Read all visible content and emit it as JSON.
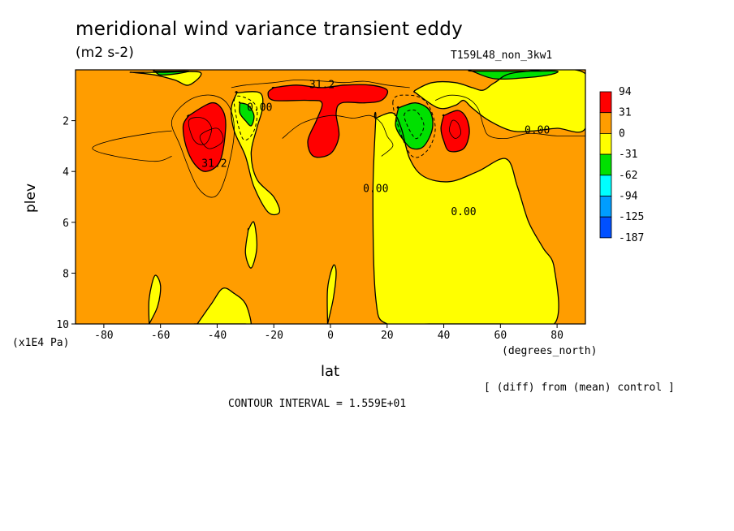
{
  "title": "meridional wind variance transient eddy",
  "units": "(m2 s-2)",
  "run_label": "T159L48_non_3kw1",
  "footer": {
    "diff_note": "[ (diff) from (mean) control ]",
    "contour_interval": "CONTOUR INTERVAL = 1.559E+01"
  },
  "chart_data": {
    "type": "heatmap",
    "title": "meridional wind variance transient eddy",
    "xlabel": "lat",
    "x_unit": "(degrees_north)",
    "ylabel": "plev",
    "y_unit": "(x1E4 Pa)",
    "xlim": [
      -90,
      90
    ],
    "ylim": [
      10,
      0
    ],
    "x_ticks": [
      -80,
      -60,
      -40,
      -20,
      0,
      20,
      40,
      60,
      80
    ],
    "y_ticks": [
      2,
      4,
      6,
      8,
      10
    ],
    "contour_interval": 15.59,
    "colorbar": {
      "labels": [
        "94",
        "31",
        "0",
        "-31",
        "-62",
        "-94",
        "-125",
        "-187"
      ],
      "colors": [
        "#ff0000",
        "#ff9d00",
        "#ffff00",
        "#00e000",
        "#00ffff",
        "#009dff",
        "#0050ff"
      ]
    },
    "contour_labels": [
      {
        "text": "31.2",
        "lat": -3,
        "plev": 0.6
      },
      {
        "text": "0.00",
        "lat": -25,
        "plev": 1.5
      },
      {
        "text": "31.2",
        "lat": -41,
        "plev": 3.7
      },
      {
        "text": "0.00",
        "lat": 73,
        "plev": 2.4
      },
      {
        "text": "0.00",
        "lat": 16,
        "plev": 4.7
      },
      {
        "text": "0.00",
        "lat": 47,
        "plev": 5.6
      }
    ],
    "regions": [
      {
        "level": "0 to 31",
        "color": "#ffff00",
        "lon": [
          -33,
          -25,
          -24,
          -26,
          -28,
          -26,
          -20,
          -18,
          -22,
          -27,
          -30,
          -34,
          -35,
          -33
        ],
        "lev": [
          0.9,
          0.9,
          1.5,
          2.3,
          3.3,
          4.3,
          5.0,
          5.6,
          5.6,
          4.6,
          3.4,
          2.4,
          1.5,
          0.9
        ]
      },
      {
        "level": "0 to 31",
        "color": "#ffff00",
        "lon": [
          16,
          22,
          25,
          28,
          33,
          42,
          52,
          62,
          66,
          70,
          75,
          79,
          79,
          60,
          35,
          20,
          16,
          15,
          16
        ],
        "lev": [
          1.9,
          1.7,
          2.3,
          3.5,
          4.2,
          4.4,
          4.0,
          3.5,
          4.6,
          6.0,
          7.0,
          7.8,
          10,
          10,
          10,
          10,
          9.0,
          5.0,
          1.9
        ]
      },
      {
        "level": "0 to 31",
        "color": "#ffff00",
        "lon": [
          30,
          38,
          44,
          47,
          50,
          56,
          64,
          72,
          80,
          90,
          90,
          66,
          58,
          54,
          50,
          44,
          36,
          30,
          30
        ],
        "lev": [
          0.9,
          1.5,
          1.4,
          1.2,
          1.5,
          2.0,
          2.4,
          2.4,
          2.3,
          2.3,
          0.15,
          0.1,
          0.5,
          0.8,
          0.7,
          0.5,
          0.5,
          0.8,
          0.9
        ]
      },
      {
        "level": "0 to 31",
        "color": "#ffff00",
        "lon": [
          -70,
          -62,
          -55,
          -50,
          -46,
          -60,
          -70,
          -70
        ],
        "lev": [
          0.1,
          0.2,
          0.4,
          0.6,
          0.1,
          0.1,
          0.1,
          0.1
        ]
      },
      {
        "level": "0 to 31",
        "color": "#ffff00",
        "lon": [
          -47,
          -42,
          -38,
          -34,
          -30,
          -28,
          -30,
          -34,
          -44,
          -48,
          -47
        ],
        "lev": [
          10,
          9.2,
          8.6,
          8.8,
          9.2,
          10,
          10,
          10,
          10,
          10,
          10
        ]
      },
      {
        "level": "0 to 31",
        "color": "#ffff00",
        "lon": [
          -64,
          -61,
          -60,
          -62,
          -64,
          -64
        ],
        "lev": [
          10,
          9.3,
          8.5,
          8.1,
          9.0,
          10
        ]
      },
      {
        "level": "0 to 31",
        "color": "#ffff00",
        "lon": [
          -29,
          -27,
          -26,
          -28,
          -30,
          -29
        ],
        "lev": [
          6.3,
          6.0,
          7.0,
          7.8,
          7.2,
          6.3
        ]
      },
      {
        "level": "0 to 31",
        "color": "#ffff00",
        "lon": [
          -1,
          1,
          2,
          1,
          -1,
          -1
        ],
        "lev": [
          10,
          9.0,
          8.0,
          7.7,
          8.6,
          10
        ]
      },
      {
        "level": "31 to 94",
        "color": "#ff0000",
        "lon": [
          -50,
          -42,
          -38,
          -37,
          -39,
          -44,
          -48,
          -51,
          -52,
          -50
        ],
        "lev": [
          1.8,
          1.3,
          1.6,
          2.3,
          3.6,
          4.0,
          3.7,
          3.0,
          2.2,
          1.8
        ]
      },
      {
        "level": "31 to 94",
        "color": "#ff0000",
        "lon": [
          -20,
          -12,
          -3,
          5,
          14,
          20,
          18,
          12,
          4,
          2,
          3,
          0,
          -6,
          -8,
          -5,
          -3,
          -8,
          -20,
          -22,
          -20
        ],
        "lev": [
          0.7,
          0.6,
          0.7,
          0.6,
          0.6,
          0.8,
          1.2,
          1.3,
          1.3,
          1.7,
          2.6,
          3.3,
          3.4,
          2.8,
          2.0,
          1.3,
          1.2,
          1.2,
          0.9,
          0.7
        ]
      },
      {
        "level": "31 to 94",
        "color": "#ff0000",
        "lon": [
          40,
          45,
          48,
          49,
          47,
          42,
          40,
          39,
          40
        ],
        "lev": [
          1.8,
          1.6,
          1.9,
          2.5,
          3.1,
          3.2,
          2.8,
          2.3,
          1.8
        ]
      },
      {
        "level": "-31 to 0",
        "color": "#00e000",
        "lon": [
          -32,
          -29,
          -27,
          -28,
          -30,
          -32,
          -32
        ],
        "lev": [
          1.3,
          1.4,
          1.8,
          2.2,
          2.0,
          1.7,
          1.3
        ]
      },
      {
        "level": "-31 to 0",
        "color": "#00e000",
        "lon": [
          24,
          30,
          35,
          36,
          33,
          29,
          26,
          23,
          24
        ],
        "lev": [
          1.5,
          1.3,
          1.6,
          2.3,
          3.0,
          3.1,
          2.8,
          2.2,
          1.5
        ]
      },
      {
        "level": "-31 to 0",
        "color": "#00e000",
        "lon": [
          -62,
          -56,
          -50,
          -54,
          -60,
          -62
        ],
        "lev": [
          0.05,
          0.05,
          0.05,
          0.15,
          0.2,
          0.05
        ]
      },
      {
        "level": "-31 to 0",
        "color": "#00e000",
        "lon": [
          50,
          62,
          72,
          80,
          78,
          70,
          58,
          50
        ],
        "lev": [
          0.05,
          0.05,
          0.05,
          0.05,
          0.18,
          0.3,
          0.35,
          0.05
        ]
      }
    ],
    "extra_lines": [
      {
        "lon": [
          -56,
          -50,
          -42,
          -36,
          -34,
          -37,
          -41,
          -47,
          -53,
          -56
        ],
        "lev": [
          2.0,
          1.2,
          1.0,
          1.4,
          2.5,
          4.2,
          5.0,
          4.6,
          3.0,
          2.0
        ]
      },
      {
        "lon": [
          -56,
          -64,
          -78,
          -84,
          -76,
          -62,
          -56
        ],
        "lev": [
          2.4,
          2.5,
          2.8,
          3.1,
          3.4,
          3.6,
          3.4
        ]
      },
      {
        "lon": [
          -40,
          -46,
          -43,
          -38,
          -40
        ],
        "lev": [
          2.3,
          2.6,
          3.1,
          2.8,
          2.3
        ]
      },
      {
        "lon": [
          -17,
          -10,
          0,
          8,
          14,
          18,
          20,
          22,
          18
        ],
        "lev": [
          2.7,
          2.1,
          1.8,
          1.9,
          1.8,
          2.1,
          2.6,
          3.0,
          3.4
        ]
      },
      {
        "lon": [
          -35,
          -30,
          -20,
          -12,
          -2,
          5,
          12,
          20,
          28
        ],
        "lev": [
          0.7,
          0.6,
          0.5,
          0.4,
          0.45,
          0.5,
          0.45,
          0.6,
          0.7
        ]
      },
      {
        "lon": [
          37,
          42,
          48,
          52,
          54,
          56,
          62,
          70,
          80,
          90
        ],
        "lev": [
          1.2,
          1.0,
          1.1,
          1.5,
          2.2,
          2.6,
          2.7,
          2.5,
          2.6,
          2.6
        ]
      },
      {
        "lon": [
          43,
          45,
          46,
          44,
          42,
          43
        ],
        "lev": [
          2.0,
          2.1,
          2.5,
          2.7,
          2.4,
          2.0
        ]
      },
      {
        "lon": [
          -50,
          -45,
          -42,
          -44,
          -48,
          -50
        ],
        "lev": [
          2.0,
          1.9,
          2.3,
          2.9,
          2.8,
          2.0
        ]
      }
    ],
    "dashed_lines": [
      {
        "lon": [
          -34,
          -30,
          -26,
          -27,
          -31,
          -34
        ],
        "lev": [
          1.2,
          1.1,
          1.5,
          2.4,
          2.7,
          1.2
        ]
      },
      {
        "lon": [
          22,
          28,
          34,
          37,
          34,
          28,
          22
        ],
        "lev": [
          1.3,
          1.0,
          1.3,
          2.3,
          3.2,
          3.3,
          1.3
        ]
      },
      {
        "lon": [
          26,
          30,
          33,
          30,
          26
        ],
        "lev": [
          1.8,
          1.6,
          2.2,
          2.7,
          1.8
        ]
      }
    ]
  }
}
